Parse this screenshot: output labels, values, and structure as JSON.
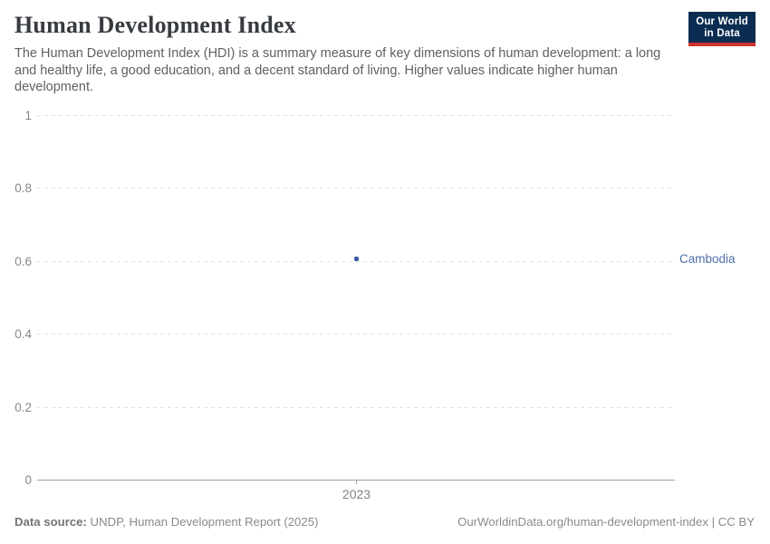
{
  "header": {
    "title": "Human Development Index",
    "subtitle": "The Human Development Index (HDI) is a summary measure of key dimensions of human development: a long and healthy life, a good education, and a decent standard of living. Higher values indicate higher human development."
  },
  "logo": {
    "line1": "Our World",
    "line2": "in Data"
  },
  "chart_data": {
    "type": "scatter",
    "title": "Human Development Index",
    "xlabel": "",
    "ylabel": "",
    "x_tick_labels": [
      "2023"
    ],
    "y_tick_labels": [
      "1",
      "0.8",
      "0.6",
      "0.4",
      "0.2",
      "0"
    ],
    "ylim": [
      0,
      1
    ],
    "grid": "horizontal-dashed",
    "legend_position": "entity label right of point",
    "series": [
      {
        "name": "Cambodia",
        "color": "#3a5ca0",
        "label_color": "#4d6fa8",
        "points": [
          {
            "x": 2023,
            "y": 0.606
          }
        ]
      }
    ]
  },
  "colors": {
    "logo_navy": "#0b2d52",
    "logo_red": "#d0342c",
    "gridline": "#e1e1e1",
    "axis_line": "#a3a3a3"
  },
  "footer": {
    "datasource_label": "Data source:",
    "datasource_value": " UNDP, Human Development Report (2025)",
    "credit": "OurWorldinData.org/human-development-index | CC BY"
  }
}
